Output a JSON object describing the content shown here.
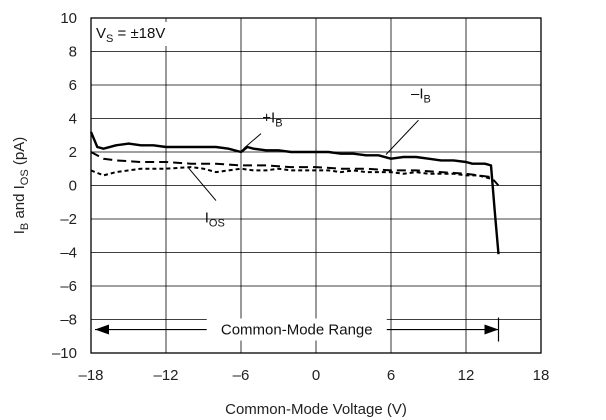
{
  "chart_data": {
    "type": "line",
    "xlabel": "Common-Mode Voltage (V)",
    "ylabel": {
      "main": "I",
      "sub1": "B",
      "mid": " and I",
      "sub2": "OS",
      "tail": " (pA)"
    },
    "xlim": [
      -18,
      18
    ],
    "ylim": [
      -10,
      10
    ],
    "xticks": [
      -18,
      -12,
      -6,
      0,
      6,
      12,
      18
    ],
    "yticks": [
      -10,
      -8,
      -6,
      -4,
      -2,
      0,
      2,
      4,
      6,
      8,
      10
    ],
    "xtick_labels": [
      "–18",
      "–12",
      "–6",
      "0",
      "6",
      "12",
      "18"
    ],
    "ytick_labels": [
      "–10",
      "–8",
      "–6",
      "–4",
      "–2",
      "0",
      "2",
      "4",
      "6",
      "8",
      "10"
    ],
    "grid": true,
    "condition": {
      "main": "V",
      "sub": "S",
      "tail": " = ±18V"
    },
    "range_label": "Common-Mode Range",
    "range_x": [
      -18,
      14.6
    ],
    "series": [
      {
        "name": "+I_B",
        "label": {
          "main": "+I",
          "sub": "B"
        },
        "style": "solid",
        "stroke": "#000000",
        "x": [
          -18,
          -17.5,
          -17,
          -16,
          -15,
          -14,
          -13,
          -12,
          -11,
          -10,
          -9,
          -8,
          -7,
          -6,
          -5.5,
          -5,
          -4,
          -3,
          -2,
          -1,
          0,
          1,
          2,
          3,
          4,
          5,
          6,
          7,
          8,
          9,
          10,
          11,
          12,
          12.5,
          13,
          13.5,
          14,
          14.3,
          14.6
        ],
        "y": [
          3.2,
          2.3,
          2.2,
          2.4,
          2.5,
          2.4,
          2.4,
          2.3,
          2.3,
          2.3,
          2.3,
          2.3,
          2.2,
          2.0,
          2.3,
          2.2,
          2.1,
          2.1,
          2.0,
          2.0,
          2.0,
          2.0,
          1.9,
          1.9,
          1.8,
          1.8,
          1.6,
          1.7,
          1.7,
          1.6,
          1.5,
          1.5,
          1.4,
          1.3,
          1.3,
          1.3,
          1.2,
          -1.5,
          -4.1
        ]
      },
      {
        "name": "-I_B",
        "label": {
          "main": "–I",
          "sub": "B"
        },
        "style": "dashed",
        "stroke": "#000000",
        "x": [
          -18,
          -17,
          -16,
          -14,
          -12,
          -10,
          -8,
          -6,
          -4,
          -2,
          0,
          2,
          4,
          6,
          8,
          10,
          12,
          13,
          14,
          14.6
        ],
        "y": [
          2.0,
          1.6,
          1.5,
          1.4,
          1.4,
          1.3,
          1.3,
          1.2,
          1.2,
          1.1,
          1.1,
          1.0,
          1.0,
          0.9,
          0.9,
          0.8,
          0.7,
          0.6,
          0.5,
          0.0
        ]
      },
      {
        "name": "I_OS",
        "label": {
          "main": "I",
          "sub": "OS"
        },
        "style": "dotted",
        "stroke": "#000000",
        "x": [
          -18,
          -17,
          -16,
          -15,
          -14,
          -12,
          -10,
          -9,
          -8,
          -7,
          -6,
          -5,
          -4,
          -3,
          -2,
          -1,
          0,
          1,
          2,
          3,
          4,
          5,
          6,
          7,
          8,
          9,
          10,
          11,
          12,
          13,
          13.5,
          14
        ],
        "y": [
          0.9,
          0.6,
          0.8,
          0.9,
          1.0,
          1.0,
          1.1,
          1.0,
          0.8,
          0.9,
          1.0,
          0.9,
          0.9,
          1.0,
          0.9,
          0.9,
          0.9,
          0.9,
          0.8,
          0.9,
          0.8,
          0.8,
          0.8,
          0.7,
          0.8,
          0.7,
          0.7,
          0.7,
          0.6,
          0.6,
          0.5,
          0.4
        ]
      }
    ]
  }
}
